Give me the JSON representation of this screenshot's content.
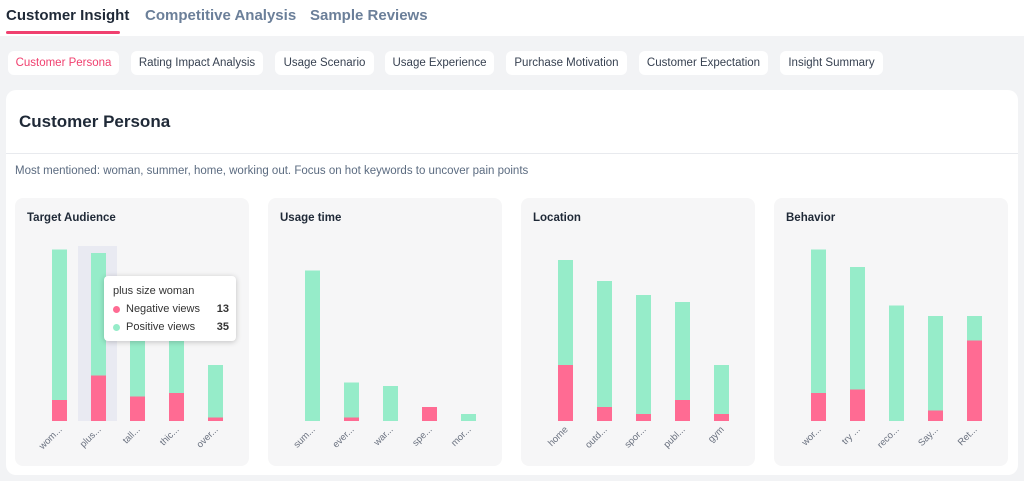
{
  "tabs": [
    {
      "label": "Customer Insight",
      "active": true
    },
    {
      "label": "Competitive Analysis",
      "active": false
    },
    {
      "label": "Sample Reviews",
      "active": false
    }
  ],
  "subtabs": [
    {
      "label": "Customer Persona",
      "active": true
    },
    {
      "label": "Rating Impact Analysis",
      "active": false
    },
    {
      "label": "Usage Scenario",
      "active": false
    },
    {
      "label": "Usage Experience",
      "active": false
    },
    {
      "label": "Purchase Motivation",
      "active": false
    },
    {
      "label": "Customer Expectation",
      "active": false
    },
    {
      "label": "Insight Summary",
      "active": false
    }
  ],
  "section": {
    "title": "Customer Persona",
    "summary": "Most mentioned: woman, summer, home, working out. Focus on hot keywords to uncover pain points"
  },
  "colors": {
    "negative": "#ff6b93",
    "positive": "#96ecc9",
    "accent": "#f0406f"
  },
  "tooltip": {
    "title": "plus size woman",
    "rows": [
      {
        "label": "Negative views",
        "value": "13"
      },
      {
        "label": "Positive views",
        "value": "35"
      }
    ]
  },
  "chart_data": [
    {
      "type": "bar",
      "stacked": true,
      "title": "Target Audience",
      "categories": [
        "wom...",
        "plus...",
        "tall...",
        "thic...",
        "over..."
      ],
      "series": [
        {
          "name": "Negative views",
          "values": [
            6,
            13,
            7,
            8,
            1
          ]
        },
        {
          "name": "Positive views",
          "values": [
            43,
            35,
            20,
            15,
            15
          ]
        }
      ],
      "highlight_index": 1
    },
    {
      "type": "bar",
      "stacked": true,
      "title": "Usage time",
      "categories": [
        "sum...",
        "ever...",
        "war...",
        "spe...",
        "mor..."
      ],
      "series": [
        {
          "name": "Negative views",
          "values": [
            0,
            1,
            0,
            4,
            0
          ]
        },
        {
          "name": "Positive views",
          "values": [
            43,
            10,
            10,
            0,
            2
          ]
        }
      ]
    },
    {
      "type": "bar",
      "stacked": true,
      "title": "Location",
      "categories": [
        "home",
        "outd...",
        "spor...",
        "publ...",
        "gym"
      ],
      "series": [
        {
          "name": "Negative views",
          "values": [
            16,
            4,
            2,
            6,
            2
          ]
        },
        {
          "name": "Positive views",
          "values": [
            30,
            36,
            34,
            28,
            14
          ]
        }
      ]
    },
    {
      "type": "bar",
      "stacked": true,
      "title": "Behavior",
      "categories": [
        "wor...",
        "try ...",
        "reco...",
        "Say...",
        "Ret..."
      ],
      "series": [
        {
          "name": "Negative views",
          "values": [
            8,
            9,
            0,
            3,
            23
          ]
        },
        {
          "name": "Positive views",
          "values": [
            41,
            35,
            33,
            27,
            7
          ]
        }
      ]
    }
  ]
}
